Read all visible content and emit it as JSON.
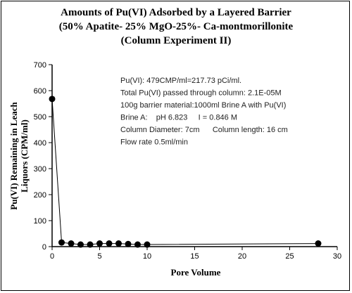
{
  "chart_data": {
    "type": "line",
    "title_lines": [
      "Amounts of Pu(VI) Adsorbed by a Layered Barrier",
      "(50% Apatite- 25% MgO-25%- Ca-montmorillonite",
      "(Column Experiment II)"
    ],
    "xlabel": "Pore Volume",
    "ylabel_lines": [
      "Pu(VI) Remaining in Leach",
      "Liquors (CPM/ml)"
    ],
    "xlim": [
      0,
      30
    ],
    "ylim": [
      0,
      700
    ],
    "x_ticks": [
      "0",
      "5",
      "10",
      "15",
      "20",
      "25",
      "30"
    ],
    "y_ticks": [
      "0",
      "100",
      "200",
      "300",
      "400",
      "500",
      "600",
      "700"
    ],
    "grid": false,
    "legend": "none",
    "series": [
      {
        "x": [
          0,
          1,
          2,
          3,
          4,
          5,
          6,
          7,
          8,
          9,
          10,
          28
        ],
        "y": [
          568,
          16,
          12,
          8,
          8,
          12,
          12,
          12,
          10,
          8,
          8,
          12
        ]
      }
    ],
    "annotations": [
      "Pu(VI): 479CMP/ml=217.73 pCi/ml.",
      "Total Pu(VI) passed through column: 2.1E-05M",
      "100g barrier material:1000ml Brine A with Pu(VI)",
      "Brine A:    pH 6.823     I = 0.846 M",
      "Column Diameter: 7cm      Column length: 16 cm",
      "Flow rate 0.5ml/min"
    ],
    "colors": {
      "marker": "#000000",
      "line": "#000000",
      "text": "#222222"
    }
  }
}
